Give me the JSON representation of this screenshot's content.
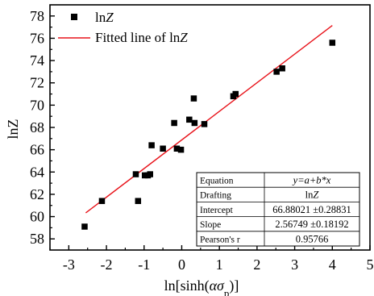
{
  "chart_data": {
    "type": "scatter",
    "xlabel": "ln[sinh(ασp)]",
    "ylabel": "lnZ",
    "xlim": [
      -3.5,
      5
    ],
    "ylim": [
      57,
      79
    ],
    "x_ticks": [
      -3,
      -2,
      -1,
      0,
      1,
      2,
      3,
      4,
      5
    ],
    "y_ticks": [
      58,
      60,
      62,
      64,
      66,
      68,
      70,
      72,
      74,
      76,
      78
    ],
    "grid": false,
    "legend_position": "top-left",
    "series": [
      {
        "name": "lnZ",
        "kind": "scatter",
        "marker": "square",
        "color": "#000000",
        "x": [
          -2.58,
          -2.12,
          -1.22,
          -1.16,
          -0.98,
          -0.9,
          -0.84,
          -0.8,
          -0.5,
          -0.2,
          -0.13,
          -0.02,
          0.2,
          0.34,
          0.32,
          0.6,
          1.37,
          1.43,
          2.52,
          2.67,
          4.0
        ],
        "y": [
          59.1,
          61.4,
          63.8,
          61.4,
          63.7,
          63.7,
          63.8,
          66.4,
          66.1,
          68.4,
          66.1,
          66.0,
          68.7,
          68.4,
          70.6,
          68.3,
          70.8,
          71.0,
          73.0,
          73.3,
          75.6
        ]
      },
      {
        "name": "Fitted line of lnZ",
        "kind": "line",
        "color": "#e8141b",
        "x": [
          -2.55,
          4.0
        ],
        "y": [
          60.33,
          77.15
        ]
      }
    ],
    "stats_table": {
      "rows": [
        {
          "label": "Equation",
          "value": "y=a+b*x"
        },
        {
          "label": "Drafting",
          "value": "lnZ"
        },
        {
          "label": "Intercept",
          "value": "66.88021 ±0.28831"
        },
        {
          "label": "Slope",
          "value": "2.56749 ±0.18192"
        },
        {
          "label": "Pearson's r",
          "value": "0.95766"
        }
      ]
    }
  }
}
